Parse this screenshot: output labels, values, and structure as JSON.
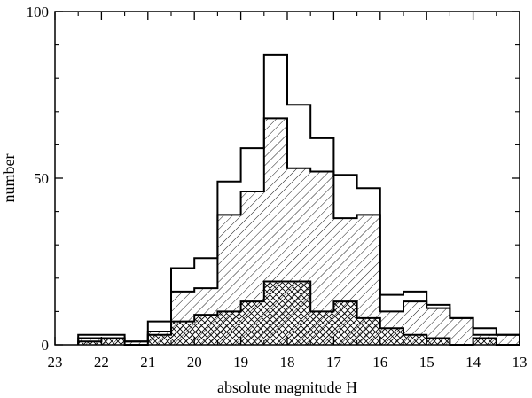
{
  "chart_data": {
    "type": "bar",
    "xlabel": "absolute magnitude H",
    "ylabel": "number",
    "title": "",
    "xlim": [
      23,
      13
    ],
    "ylim": [
      0,
      100
    ],
    "x_ticks": [
      23,
      22,
      21,
      20,
      19,
      18,
      17,
      16,
      15,
      14,
      13
    ],
    "y_ticks": [
      0,
      50,
      100
    ],
    "bin_edges": [
      22.5,
      22.0,
      21.5,
      21.0,
      20.5,
      20.0,
      19.5,
      19.0,
      18.5,
      18.0,
      17.5,
      17.0,
      16.5,
      16.0,
      15.5,
      15.0,
      14.5,
      14.0,
      13.5,
      13.0
    ],
    "series": [
      {
        "fill": "none",
        "values": [
          3,
          3,
          1,
          7,
          23,
          26,
          49,
          59,
          87,
          72,
          62,
          51,
          47,
          15,
          16,
          12,
          8,
          5,
          3
        ]
      },
      {
        "fill": "diagonal-hatch",
        "values": [
          2,
          2,
          1,
          4,
          16,
          17,
          39,
          46,
          68,
          53,
          52,
          38,
          39,
          10,
          13,
          11,
          8,
          3,
          3
        ]
      },
      {
        "fill": "cross-hatch",
        "values": [
          1,
          2,
          0,
          3,
          7,
          9,
          10,
          13,
          19,
          19,
          10,
          13,
          8,
          5,
          3,
          2,
          0,
          2,
          0
        ]
      }
    ]
  }
}
